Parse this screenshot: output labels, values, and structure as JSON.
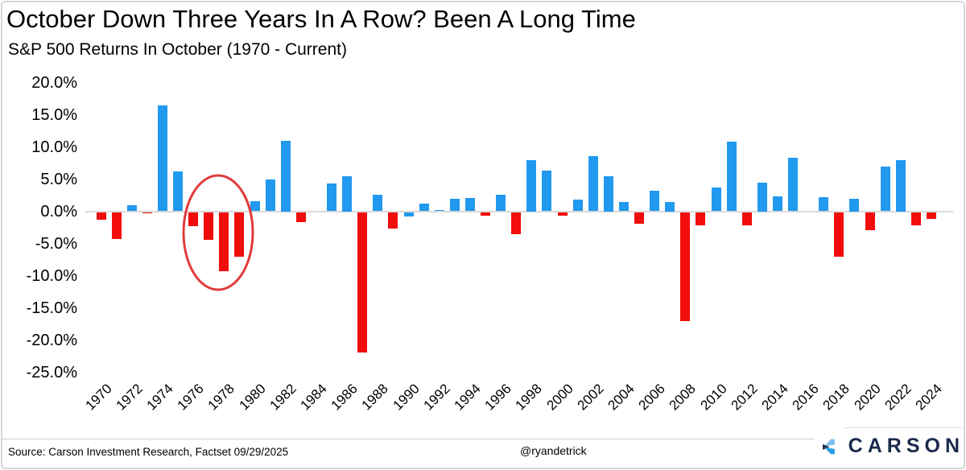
{
  "title": "October Down Three Years In A Row? Been A Long Time",
  "subtitle": "S&P 500 Returns In October (1970 - Current)",
  "footer": {
    "source": "Source: Carson Investment Research, Factset 09/29/2025",
    "handle": "@ryandetrick",
    "logo_text": "CARSON"
  },
  "colors": {
    "positive_bar": "#2199ee",
    "negative_bar": "#f20d0d",
    "annotation_ellipse": "#e23b3b",
    "zero_line": "#d9d9d9",
    "logo_navy": "#1a2b4c",
    "logo_light_blue": "#7cc0ec",
    "logo_mid_blue": "#2a9fe8"
  },
  "chart_data": {
    "type": "bar",
    "title": "October Down Three Years In A Row? Been A Long Time",
    "subtitle": "S&P 500 Returns In October (1970 - Current)",
    "x": [
      1970,
      1971,
      1972,
      1973,
      1974,
      1975,
      1976,
      1977,
      1978,
      1979,
      1980,
      1981,
      1982,
      1983,
      1984,
      1985,
      1986,
      1987,
      1988,
      1989,
      1990,
      1991,
      1992,
      1993,
      1994,
      1995,
      1996,
      1997,
      1998,
      1999,
      2000,
      2001,
      2002,
      2003,
      2004,
      2005,
      2006,
      2007,
      2008,
      2009,
      2010,
      2011,
      2012,
      2013,
      2014,
      2015,
      2016,
      2017,
      2018,
      2019,
      2020,
      2021,
      2022,
      2023,
      2024
    ],
    "values": [
      -1.2,
      -4.2,
      0.9,
      -0.1,
      16.4,
      6.2,
      -2.2,
      -4.3,
      -9.2,
      -6.9,
      1.6,
      4.9,
      11.0,
      -1.5,
      0.0,
      4.3,
      5.5,
      -21.8,
      2.6,
      -2.5,
      -0.7,
      1.2,
      0.2,
      1.9,
      2.1,
      -0.5,
      2.6,
      -3.4,
      8.0,
      6.3,
      -0.5,
      1.8,
      8.6,
      5.5,
      1.4,
      -1.8,
      3.2,
      1.5,
      -16.9,
      -2.0,
      3.7,
      10.8,
      -2.0,
      4.5,
      2.3,
      8.3,
      0.0,
      2.2,
      -6.9,
      2.0,
      -2.8,
      6.9,
      8.0,
      -2.1,
      -1.0
    ],
    "negative_blue_years": [
      1990
    ],
    "yticks": [
      20,
      15,
      10,
      5,
      0,
      -5,
      -10,
      -15,
      -20,
      -25
    ],
    "ytick_labels": [
      "20.0%",
      "15.0%",
      "10.0%",
      "5.0%",
      "0.0%",
      "-5.0%",
      "-10.0%",
      "-15.0%",
      "-20.0%",
      "-25.0%"
    ],
    "xtick_labels": [
      "1970",
      "1972",
      "1974",
      "1976",
      "1978",
      "1980",
      "1982",
      "1984",
      "1986",
      "1988",
      "1990",
      "1992",
      "1994",
      "1996",
      "1998",
      "2000",
      "2002",
      "2004",
      "2006",
      "2008",
      "2010",
      "2012",
      "2014",
      "2016",
      "2018",
      "2020",
      "2022",
      "2024"
    ],
    "ylim": [
      -25,
      20
    ],
    "grid": false,
    "legend": false,
    "annotation": {
      "shape": "ellipse",
      "circled_years": [
        1977,
        1978,
        1979
      ]
    }
  }
}
